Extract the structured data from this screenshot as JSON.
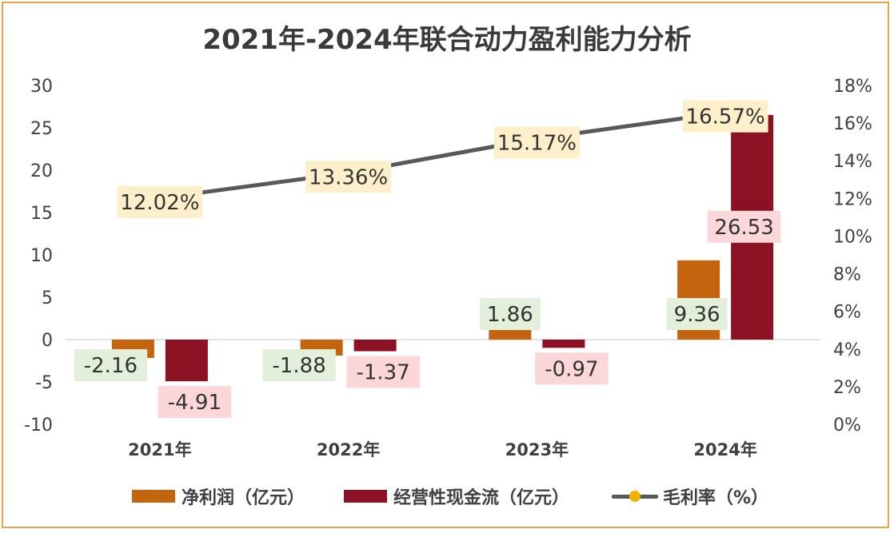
{
  "chart_data": {
    "type": "bar+line",
    "title": "2021年-2024年联合动力盈利能力分析",
    "categories": [
      "2021年",
      "2022年",
      "2023年",
      "2024年"
    ],
    "y_left": {
      "ticks": [
        "30",
        "25",
        "20",
        "15",
        "10",
        "5",
        "0",
        "-5",
        "-10"
      ],
      "ylim": [
        -10,
        30
      ]
    },
    "y_right": {
      "ticks": [
        "18%",
        "16%",
        "14%",
        "12%",
        "10%",
        "8%",
        "6%",
        "4%",
        "2%",
        "0%"
      ],
      "ylim": [
        0,
        18
      ]
    },
    "series": [
      {
        "name": "净利润（亿元）",
        "type": "bar",
        "axis": "left",
        "color": "#C5640F",
        "values": [
          -2.16,
          -1.88,
          1.86,
          9.36
        ],
        "labels": [
          "-2.16",
          "-1.88",
          "1.86",
          "9.36"
        ],
        "label_bg": "#E2EFDA"
      },
      {
        "name": "经营性现金流（亿元）",
        "type": "bar",
        "axis": "left",
        "color": "#8B1123",
        "values": [
          -4.91,
          -1.37,
          -0.97,
          26.53
        ],
        "labels": [
          "-4.91",
          "-1.37",
          "-0.97",
          "26.53"
        ],
        "label_bg": "#FBD7D9"
      },
      {
        "name": "毛利率（%）",
        "type": "line",
        "axis": "right",
        "color": "#595959",
        "marker_color": "#F0B400",
        "values": [
          12.02,
          13.36,
          15.17,
          16.57
        ],
        "labels": [
          "12.02%",
          "13.36%",
          "15.17%",
          "16.57%"
        ],
        "label_bg": "#FCEFC9"
      }
    ],
    "legend_position": "bottom",
    "grid": false
  }
}
